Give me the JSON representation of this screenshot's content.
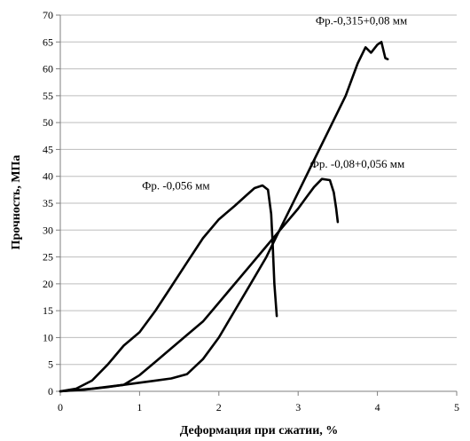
{
  "chart_data": {
    "type": "line",
    "title": "",
    "xlabel": "Деформация при сжатии, %",
    "ylabel": "Прочность, МПа",
    "xlim": [
      0,
      5
    ],
    "ylim": [
      0,
      70
    ],
    "x_ticks": [
      "0",
      "1",
      "2",
      "3",
      "4",
      "5"
    ],
    "y_ticks": [
      "0",
      "5",
      "10",
      "15",
      "20",
      "25",
      "30",
      "35",
      "40",
      "45",
      "50",
      "55",
      "60",
      "65",
      "70"
    ],
    "grid": "horizontal",
    "legend": "none",
    "series": [
      {
        "name": "Фр. -0,056 мм",
        "points": [
          [
            0,
            0
          ],
          [
            0.2,
            0.5
          ],
          [
            0.4,
            2
          ],
          [
            0.6,
            5
          ],
          [
            0.8,
            8.5
          ],
          [
            1.0,
            11
          ],
          [
            1.2,
            15
          ],
          [
            1.4,
            19.5
          ],
          [
            1.6,
            24
          ],
          [
            1.8,
            28.5
          ],
          [
            2.0,
            32
          ],
          [
            2.2,
            34.5
          ],
          [
            2.35,
            36.5
          ],
          [
            2.45,
            37.8
          ],
          [
            2.55,
            38.3
          ],
          [
            2.62,
            37.5
          ],
          [
            2.66,
            33
          ],
          [
            2.68,
            27
          ],
          [
            2.7,
            20
          ],
          [
            2.73,
            14
          ]
        ]
      },
      {
        "name": "Фр. -0,08+0,056 мм",
        "points": [
          [
            0,
            0
          ],
          [
            0.3,
            0.3
          ],
          [
            0.6,
            0.8
          ],
          [
            0.8,
            1.2
          ],
          [
            1.0,
            3
          ],
          [
            1.2,
            5.5
          ],
          [
            1.4,
            8
          ],
          [
            1.6,
            10.5
          ],
          [
            1.8,
            13
          ],
          [
            2.0,
            16.5
          ],
          [
            2.2,
            20
          ],
          [
            2.4,
            23.5
          ],
          [
            2.6,
            27
          ],
          [
            2.8,
            30.5
          ],
          [
            3.0,
            34
          ],
          [
            3.1,
            36
          ],
          [
            3.2,
            38
          ],
          [
            3.3,
            39.5
          ],
          [
            3.4,
            39.3
          ],
          [
            3.45,
            37
          ],
          [
            3.48,
            34
          ],
          [
            3.5,
            31.5
          ]
        ]
      },
      {
        "name": "Фр.-0,315+0,08 мм",
        "points": [
          [
            0,
            0
          ],
          [
            0.4,
            0.5
          ],
          [
            0.8,
            1.2
          ],
          [
            1.0,
            1.6
          ],
          [
            1.2,
            2
          ],
          [
            1.4,
            2.4
          ],
          [
            1.6,
            3.2
          ],
          [
            1.8,
            6
          ],
          [
            2.0,
            10
          ],
          [
            2.2,
            15
          ],
          [
            2.4,
            20
          ],
          [
            2.6,
            25
          ],
          [
            2.8,
            31
          ],
          [
            3.0,
            37
          ],
          [
            3.2,
            43
          ],
          [
            3.4,
            49
          ],
          [
            3.6,
            55
          ],
          [
            3.75,
            61
          ],
          [
            3.85,
            64
          ],
          [
            3.92,
            63
          ],
          [
            4.0,
            64.5
          ],
          [
            4.05,
            65
          ],
          [
            4.1,
            62
          ],
          [
            4.13,
            61.8
          ]
        ]
      }
    ],
    "annotations": [
      {
        "text": "Фр.-0,315+0,08 мм",
        "x": 3.22,
        "y": 68.3
      },
      {
        "text": "Фр. -0,08+0,056 мм",
        "x": 3.15,
        "y": 41.6
      },
      {
        "text": "Фр. -0,056 мм",
        "x": 1.03,
        "y": 37.6
      }
    ]
  }
}
